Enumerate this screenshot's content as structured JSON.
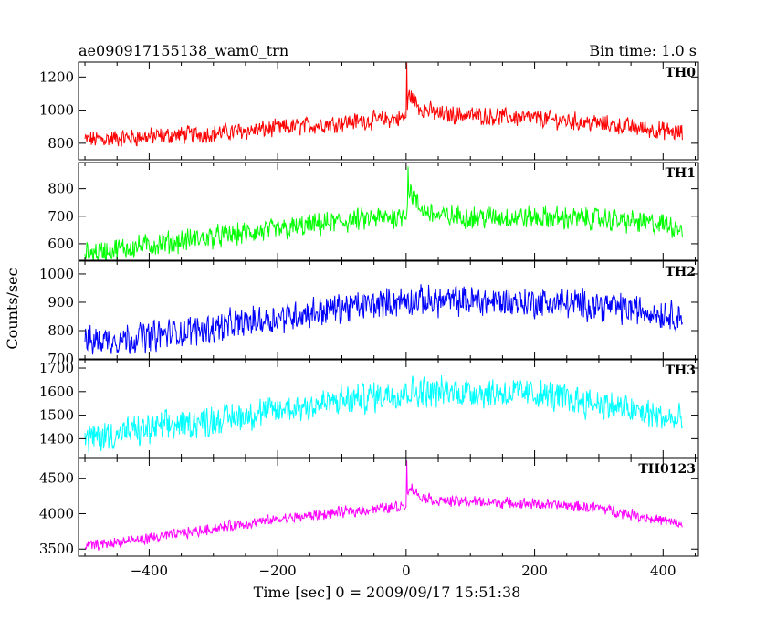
{
  "chart_data": {
    "type": "line",
    "title": "ae090917155138_wam0_trn",
    "subtitle": "Bin time: 1.0 s",
    "xlabel": "Time [sec] 0 = 2009/09/17 15:51:38",
    "ylabel": "Counts/sec",
    "xlim": [
      -510,
      455
    ],
    "x_ticks": [
      -400,
      -200,
      0,
      200,
      400
    ],
    "x_range_data": [
      -500,
      430
    ],
    "grid": false,
    "panels": [
      {
        "name": "TH0",
        "color": "#ff0000",
        "ylim": [
          700,
          1290
        ],
        "y_ticks": [
          800,
          1000,
          1200
        ],
        "x": [
          -500,
          -400,
          -300,
          -200,
          -100,
          -10,
          0,
          5,
          20,
          50,
          100,
          200,
          300,
          400,
          430
        ],
        "trend": [
          820,
          840,
          860,
          890,
          925,
          950,
          960,
          1100,
          1020,
          975,
          970,
          950,
          920,
          875,
          860
        ],
        "noise_amplitude": 45,
        "peak": {
          "x": 1,
          "y": 1285
        }
      },
      {
        "name": "TH1",
        "color": "#00ff00",
        "ylim": [
          540,
          895
        ],
        "y_ticks": [
          600,
          700,
          800
        ],
        "x": [
          -500,
          -400,
          -300,
          -200,
          -100,
          -10,
          0,
          5,
          20,
          50,
          100,
          200,
          300,
          400,
          430
        ],
        "trend": [
          565,
          595,
          625,
          650,
          680,
          700,
          715,
          800,
          730,
          700,
          698,
          695,
          690,
          670,
          660
        ],
        "noise_amplitude": 35,
        "peak": {
          "x": 3,
          "y": 880
        }
      },
      {
        "name": "TH2",
        "color": "#0000ff",
        "ylim": [
          700,
          1045
        ],
        "y_ticks": [
          700,
          800,
          900,
          1000
        ],
        "x": [
          -500,
          -400,
          -300,
          -200,
          -100,
          0,
          100,
          200,
          300,
          400,
          430
        ],
        "trend": [
          760,
          780,
          810,
          845,
          880,
          905,
          905,
          900,
          890,
          860,
          850
        ],
        "noise_amplitude": 45,
        "peak": null
      },
      {
        "name": "TH3",
        "color": "#00ffff",
        "ylim": [
          1320,
          1735
        ],
        "y_ticks": [
          1400,
          1500,
          1600,
          1700
        ],
        "x": [
          -500,
          -400,
          -300,
          -200,
          -100,
          0,
          100,
          200,
          300,
          400,
          430
        ],
        "trend": [
          1400,
          1440,
          1480,
          1520,
          1560,
          1600,
          1600,
          1590,
          1550,
          1490,
          1470
        ],
        "noise_amplitude": 55,
        "peak": null
      },
      {
        "name": "TH0123",
        "color": "#ff00ff",
        "ylim": [
          3400,
          4780
        ],
        "y_ticks": [
          3500,
          4000,
          4500
        ],
        "x": [
          -500,
          -400,
          -300,
          -200,
          -100,
          -10,
          0,
          5,
          20,
          50,
          100,
          200,
          300,
          400,
          430
        ],
        "trend": [
          3540,
          3650,
          3790,
          3920,
          4020,
          4100,
          4130,
          4400,
          4250,
          4180,
          4170,
          4140,
          4080,
          3900,
          3840
        ],
        "noise_amplitude": 65,
        "peak": {
          "x": 1,
          "y": 4750
        }
      }
    ]
  }
}
